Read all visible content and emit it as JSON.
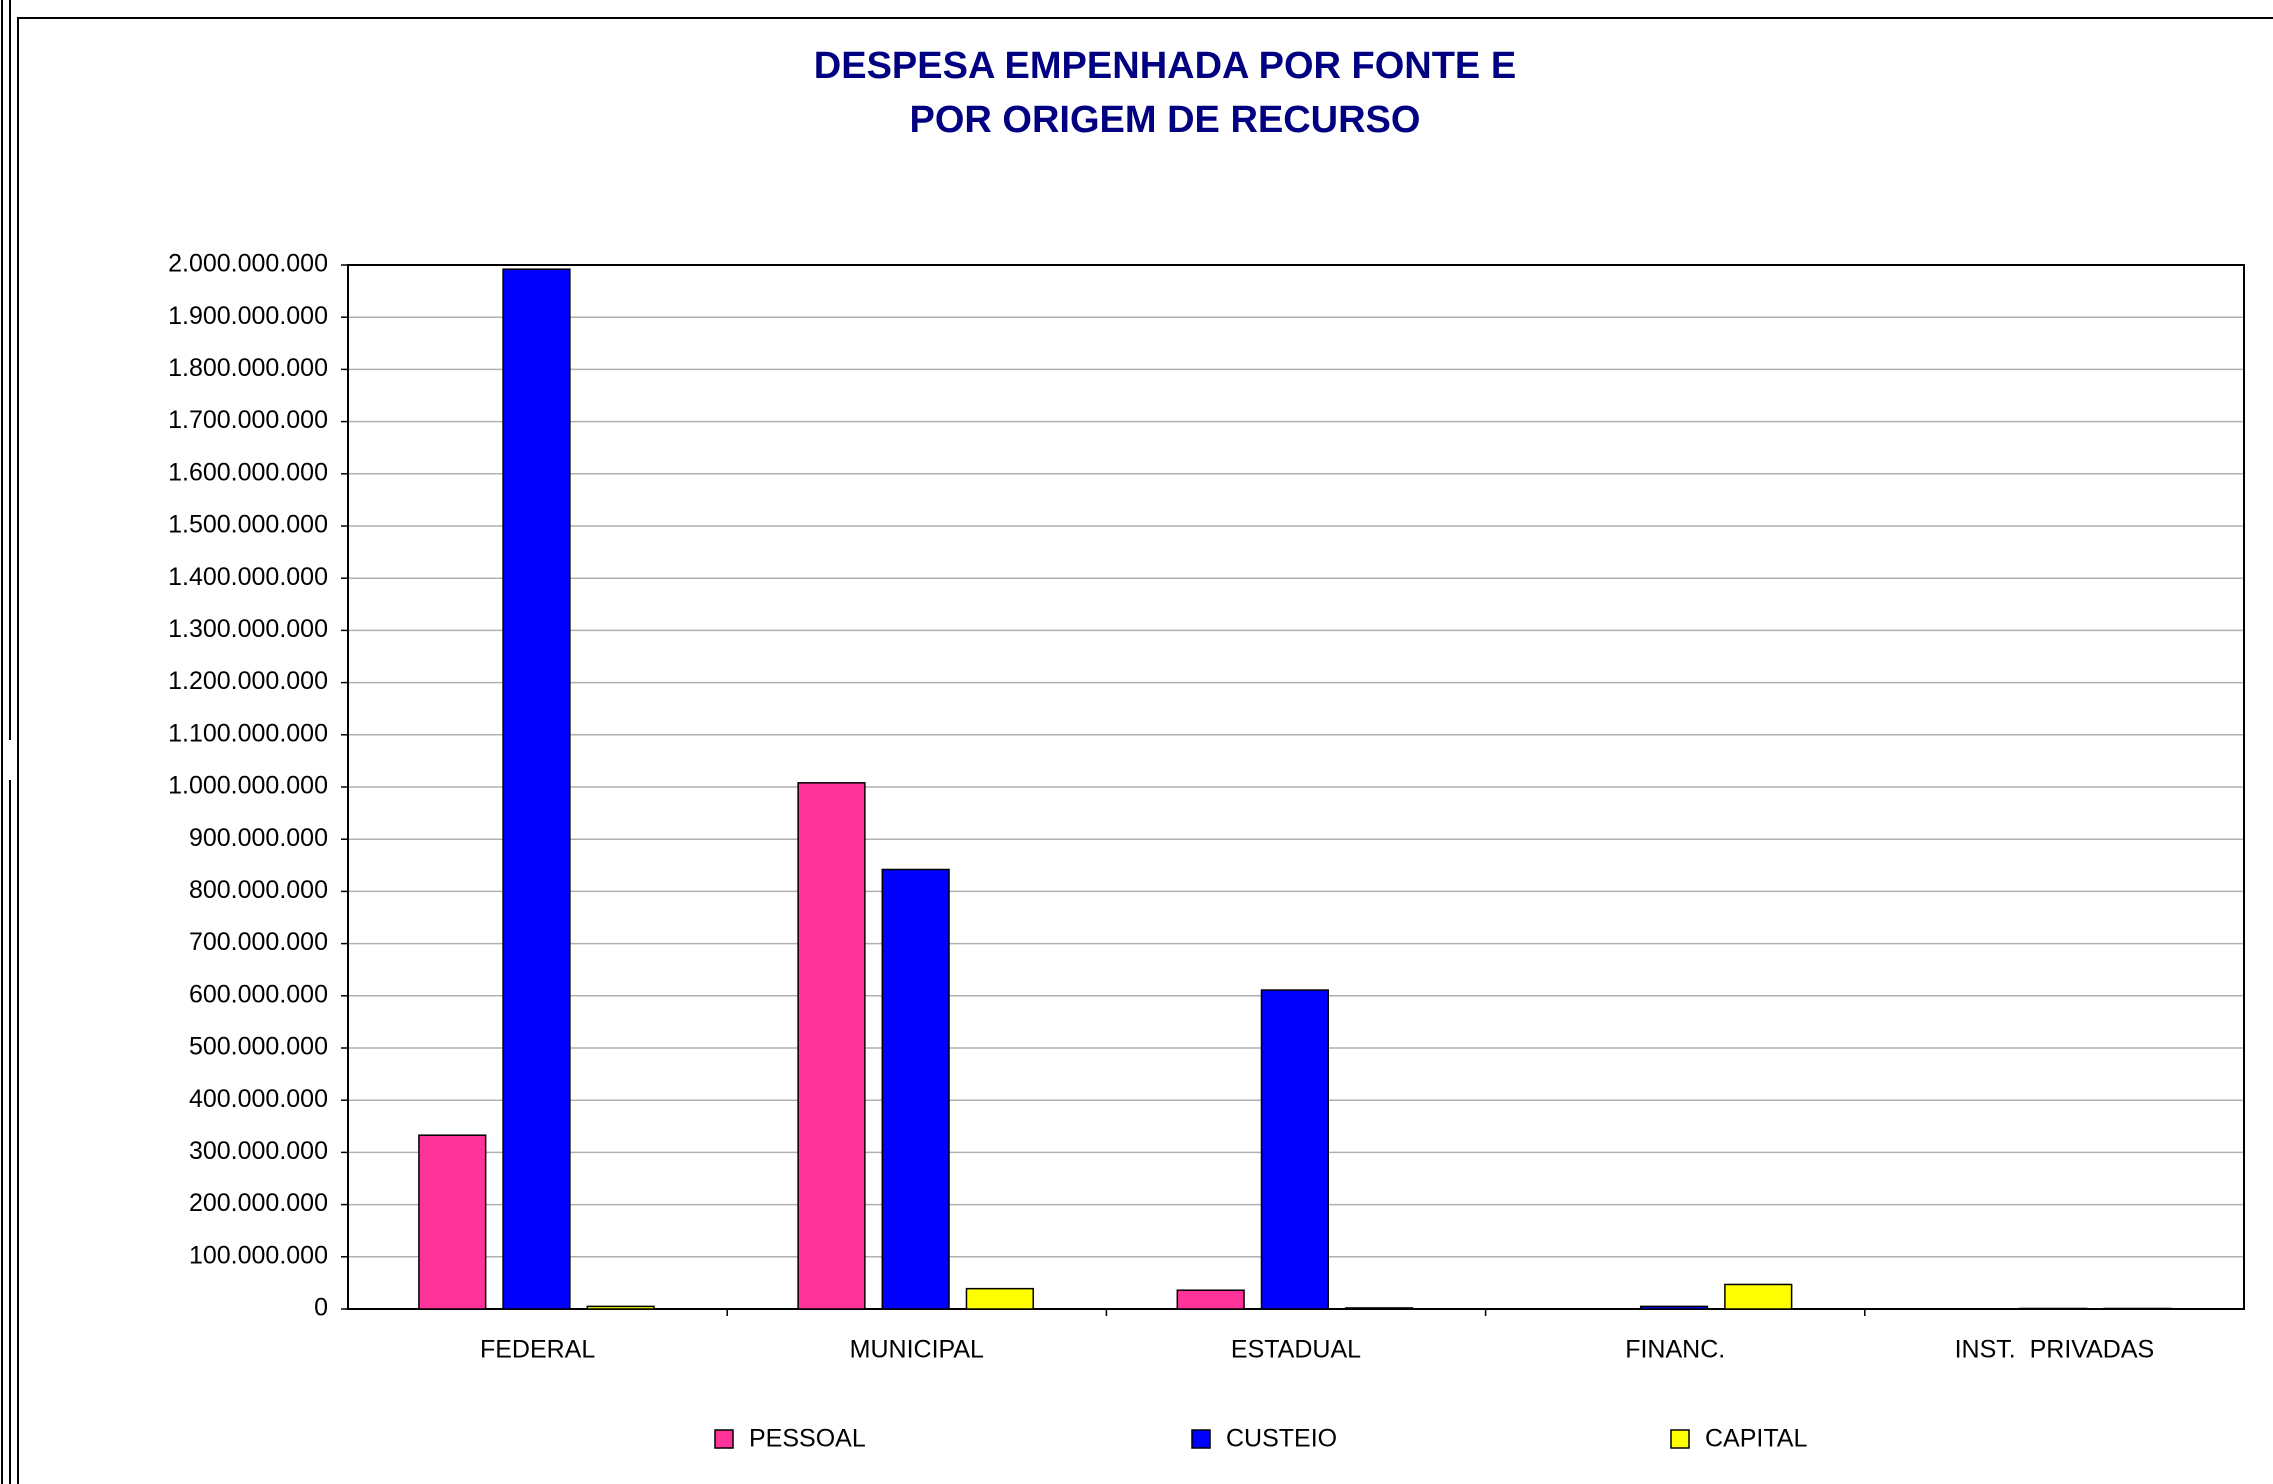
{
  "chart_data": {
    "type": "bar",
    "title": [
      "DESPESA EMPENHADA POR FONTE E",
      "POR ORIGEM DE RECURSO"
    ],
    "categories": [
      "FEDERAL",
      "MUNICIPAL",
      "ESTADUAL",
      "FINANC.",
      "INST.  PRIVADAS"
    ],
    "series": [
      {
        "name": "PESSOAL",
        "color": "#ff3399",
        "values": [
          333000000,
          1008000000,
          36000000,
          0,
          0
        ]
      },
      {
        "name": "CUSTEIO",
        "color": "#0000ff",
        "values": [
          1992000000,
          842000000,
          611000000,
          5000000,
          1000000
        ]
      },
      {
        "name": "CAPITAL",
        "color": "#ffff00",
        "values": [
          5000000,
          39000000,
          2000000,
          47000000,
          1000000
        ]
      }
    ],
    "ylim": [
      0,
      2000000000
    ],
    "yticks": [
      0,
      {
        "value": 100000000,
        "label": "100.000.000"
      },
      {
        "value": 200000000,
        "label": "200.000.000"
      },
      {
        "value": 300000000,
        "label": "300.000.000"
      },
      {
        "value": 400000000,
        "label": "400.000.000"
      },
      {
        "value": 500000000,
        "label": "500.000.000"
      },
      {
        "value": 600000000,
        "label": "600.000.000"
      },
      {
        "value": 700000000,
        "label": "700.000.000"
      },
      {
        "value": 800000000,
        "label": "800.000.000"
      },
      {
        "value": 900000000,
        "label": "900.000.000"
      },
      {
        "value": 1000000000,
        "label": "1.000.000.000"
      },
      {
        "value": 1100000000,
        "label": "1.100.000.000"
      },
      {
        "value": 1200000000,
        "label": "1.200.000.000"
      },
      {
        "value": 1300000000,
        "label": "1.300.000.000"
      },
      {
        "value": 1400000000,
        "label": "1.400.000.000"
      },
      {
        "value": 1500000000,
        "label": "1.500.000.000"
      },
      {
        "value": 1600000000,
        "label": "1.600.000.000"
      },
      {
        "value": 1700000000,
        "label": "1.700.000.000"
      },
      {
        "value": 1800000000,
        "label": "1.800.000.000"
      },
      {
        "value": 1900000000,
        "label": "1.900.000.000"
      },
      {
        "value": 2000000000,
        "label": "2.000.000.000"
      }
    ],
    "grid": true,
    "legend": "bottom"
  }
}
